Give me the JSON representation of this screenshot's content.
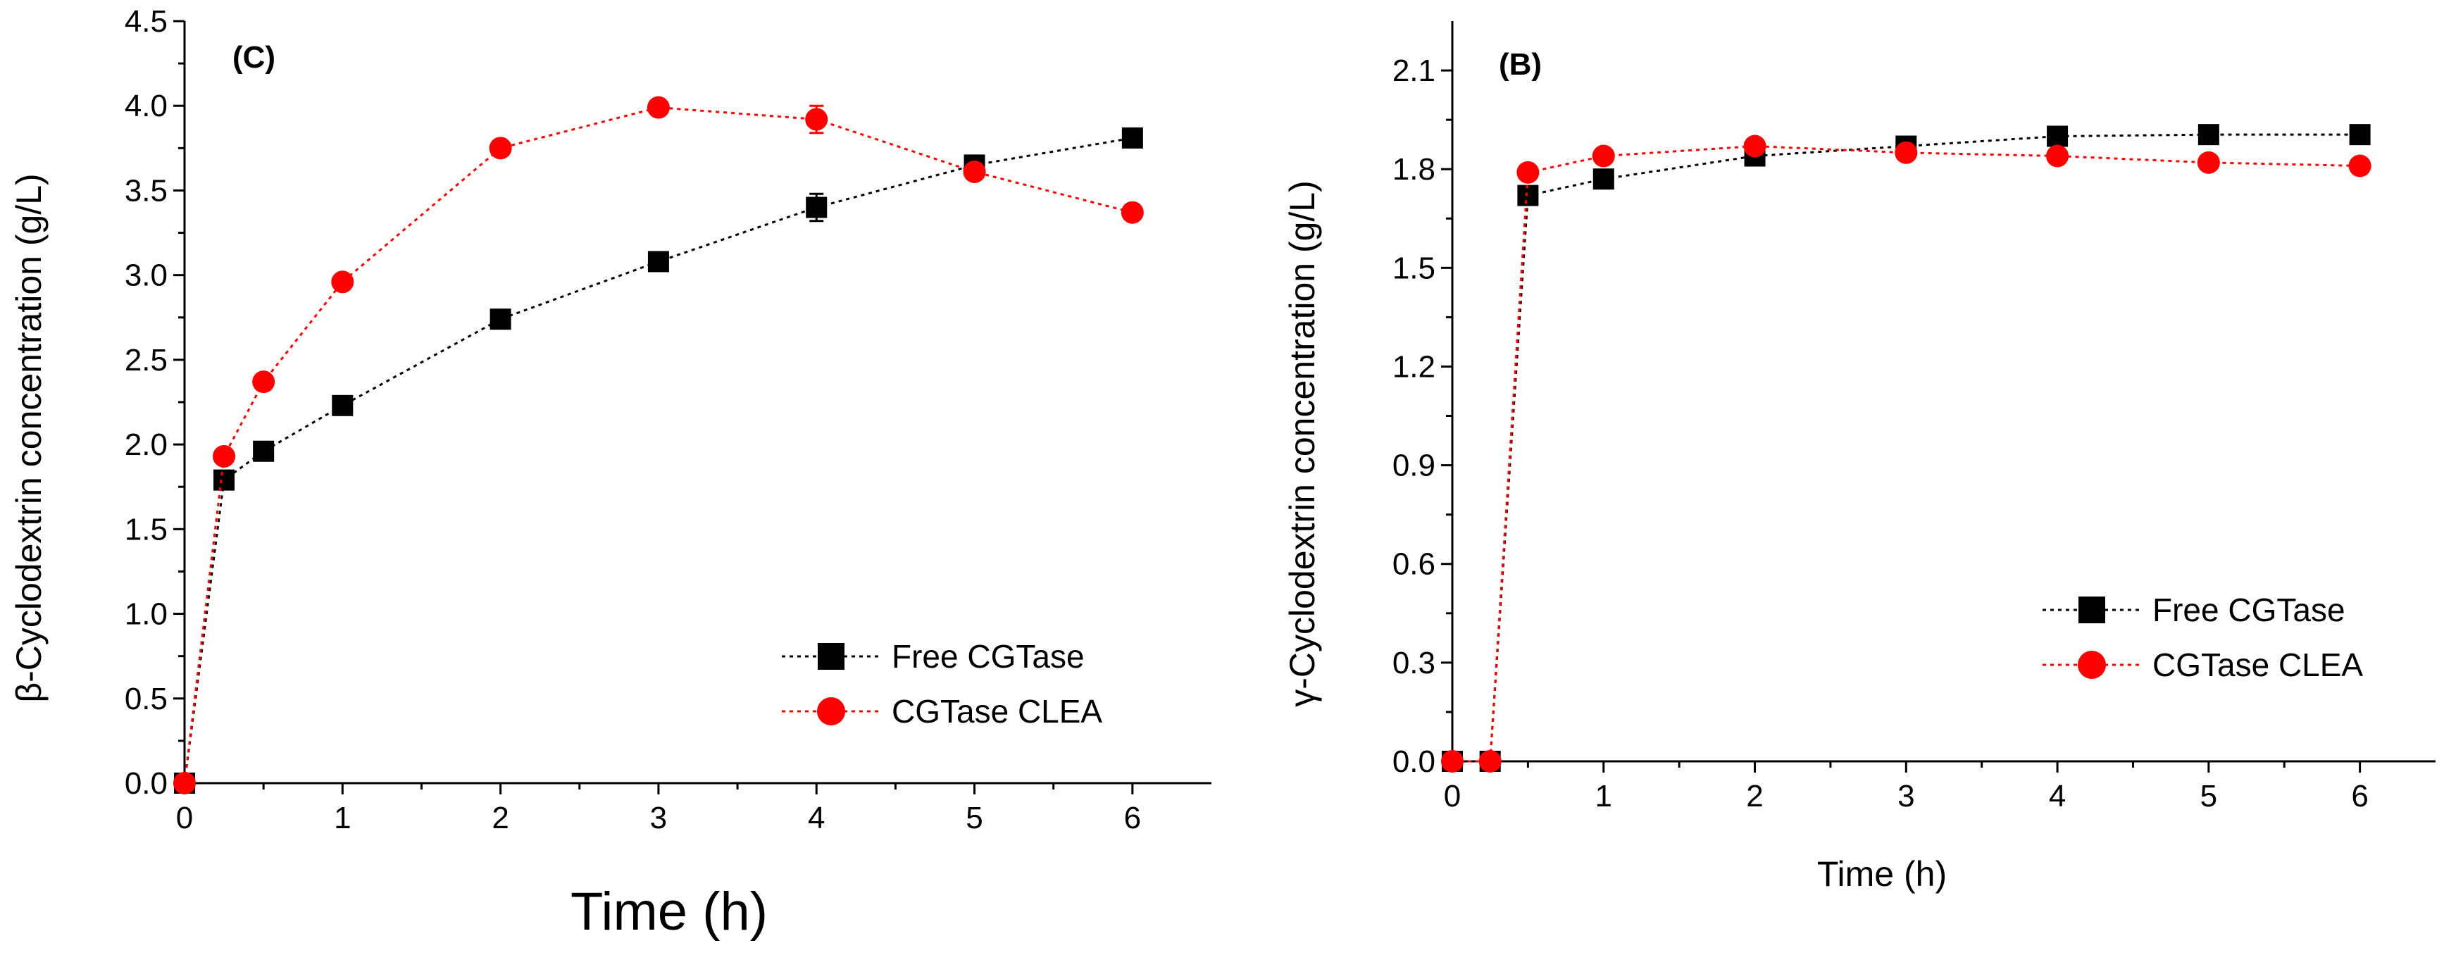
{
  "chart_data": [
    {
      "type": "line",
      "panel_label": "(C)",
      "xlabel": "Time (h)",
      "ylabel": "β-Cyclodextrin concentration (g/L)",
      "xlim": [
        0,
        6.5
      ],
      "ylim": [
        0,
        4.5
      ],
      "xticks": [
        "0",
        "1",
        "2",
        "3",
        "4",
        "5",
        "6"
      ],
      "yticks": [
        "0.0",
        "0.5",
        "1.0",
        "1.5",
        "2.0",
        "2.5",
        "3.0",
        "3.5",
        "4.0",
        "4.5"
      ],
      "legend_position": "bottom-right",
      "series": [
        {
          "name": "Free CGTase",
          "marker": "square",
          "color": "#000000",
          "x": [
            0,
            0.25,
            0.5,
            1,
            2,
            3,
            4,
            5,
            6
          ],
          "values": [
            0,
            1.79,
            1.96,
            2.23,
            2.74,
            3.08,
            3.4,
            3.65,
            3.81
          ],
          "errors": [
            0,
            0,
            0,
            0,
            0,
            0,
            0.08,
            0,
            0
          ]
        },
        {
          "name": "CGTase CLEA",
          "marker": "circle",
          "color": "#ff0000",
          "x": [
            0,
            0.25,
            0.5,
            1,
            2,
            3,
            4,
            5,
            6
          ],
          "values": [
            0,
            1.93,
            2.37,
            2.96,
            3.75,
            3.99,
            3.92,
            3.61,
            3.37
          ],
          "errors": [
            0,
            0,
            0,
            0,
            0,
            0,
            0.08,
            0,
            0
          ]
        }
      ]
    },
    {
      "type": "line",
      "panel_label": "(B)",
      "xlabel": "Time (h)",
      "ylabel": "γ-Cyclodextrin concentration (g/L)",
      "xlim": [
        0,
        6.5
      ],
      "ylim": [
        0,
        2.25
      ],
      "xticks": [
        "0",
        "1",
        "2",
        "3",
        "4",
        "5",
        "6"
      ],
      "yticks": [
        "0.0",
        "0.3",
        "0.6",
        "0.9",
        "1.2",
        "1.5",
        "1.8",
        "2.1"
      ],
      "legend_position": "bottom-right",
      "series": [
        {
          "name": "Free CGTase",
          "marker": "square",
          "color": "#000000",
          "x": [
            0,
            0.25,
            0.5,
            1,
            2,
            3,
            4,
            5,
            6
          ],
          "values": [
            0,
            0,
            1.72,
            1.77,
            1.84,
            1.87,
            1.9,
            1.905,
            1.905
          ],
          "errors": [
            0,
            0,
            0,
            0,
            0,
            0,
            0,
            0,
            0
          ]
        },
        {
          "name": "CGTase CLEA",
          "marker": "circle",
          "color": "#ff0000",
          "x": [
            0,
            0.25,
            0.5,
            1,
            2,
            3,
            4,
            5,
            6
          ],
          "values": [
            0,
            0,
            1.79,
            1.84,
            1.87,
            1.85,
            1.84,
            1.82,
            1.81
          ],
          "errors": [
            0,
            0,
            0,
            0,
            0,
            0,
            0,
            0,
            0
          ]
        }
      ]
    }
  ]
}
